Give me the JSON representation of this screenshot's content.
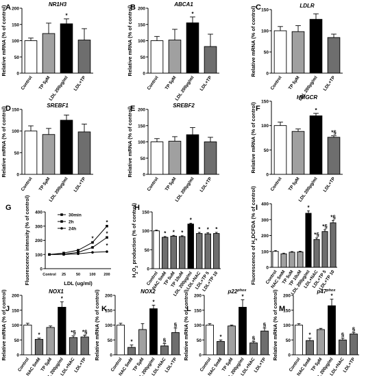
{
  "chart_data": [
    {
      "type": "bar",
      "panel_letter": "A",
      "title": "NR1H3",
      "ylabel": "Relative mRNA (% of control)",
      "ylim": [
        0,
        200
      ],
      "yticks": [
        0,
        50,
        100,
        150,
        200
      ],
      "categories": [
        "Control",
        "TP 5µM",
        "LDL 200µg/ml",
        "LDL+TP"
      ],
      "values": [
        100,
        122,
        152,
        102
      ],
      "errors": [
        8,
        32,
        15,
        35
      ],
      "sig": [
        "",
        "",
        "*",
        ""
      ],
      "colors": [
        "#ffffff",
        "#a0a0a0",
        "#000000",
        "#6e6e6e"
      ]
    },
    {
      "type": "bar",
      "panel_letter": "B",
      "title": "ABCA1",
      "ylabel": "Relative mRNA (% of control)",
      "ylim": [
        0,
        200
      ],
      "yticks": [
        0,
        50,
        100,
        150,
        200
      ],
      "categories": [
        "Control",
        "TP 5µM",
        "LDL 200µg/ml",
        "LDL+TP"
      ],
      "values": [
        100,
        102,
        155,
        82
      ],
      "errors": [
        13,
        33,
        18,
        38
      ],
      "sig": [
        "",
        "",
        "*",
        ""
      ],
      "colors": [
        "#ffffff",
        "#a0a0a0",
        "#000000",
        "#6e6e6e"
      ]
    },
    {
      "type": "bar",
      "panel_letter": "C",
      "title": "LDLR",
      "ylabel": "Relative mRNA (% of control)",
      "ylim": [
        0,
        150
      ],
      "yticks": [
        0,
        50,
        100,
        150
      ],
      "categories": [
        "Control",
        "TP 5µM",
        "LDL 200µg/ml",
        "LDL+TP"
      ],
      "values": [
        100,
        98,
        127,
        84
      ],
      "errors": [
        10,
        14,
        13,
        8
      ],
      "sig": [
        "",
        "",
        "",
        ""
      ],
      "colors": [
        "#ffffff",
        "#a0a0a0",
        "#000000",
        "#6e6e6e"
      ]
    },
    {
      "type": "bar",
      "panel_letter": "D",
      "title": "SREBF1",
      "ylabel": "Relative mRNA (% of control)",
      "ylim": [
        0,
        150
      ],
      "yticks": [
        0,
        50,
        100,
        150
      ],
      "categories": [
        "Control",
        "TP 5µM",
        "LDL 200µg/ml",
        "LDL+TP"
      ],
      "values": [
        100,
        92,
        125,
        98
      ],
      "errors": [
        12,
        14,
        12,
        18
      ],
      "sig": [
        "",
        "",
        "",
        ""
      ],
      "colors": [
        "#ffffff",
        "#a0a0a0",
        "#000000",
        "#6e6e6e"
      ]
    },
    {
      "type": "bar",
      "panel_letter": "E",
      "title": "SREBF2",
      "ylabel": "Relative mRNA (% of control)",
      "ylim": [
        0,
        200
      ],
      "yticks": [
        0,
        50,
        100,
        150,
        200
      ],
      "categories": [
        "Control",
        "TP 5µM",
        "LDL 200µg/ml",
        "LDL+TP"
      ],
      "values": [
        100,
        102,
        122,
        100
      ],
      "errors": [
        10,
        14,
        22,
        14
      ],
      "sig": [
        "",
        "",
        "",
        ""
      ],
      "colors": [
        "#ffffff",
        "#a0a0a0",
        "#000000",
        "#6e6e6e"
      ]
    },
    {
      "type": "bar",
      "panel_letter": "F",
      "title": "HMGCR",
      "ylabel": "Relative mRNA (% of control)",
      "ylim": [
        0,
        150
      ],
      "yticks": [
        0,
        50,
        100,
        150
      ],
      "categories": [
        "Control",
        "TP 5µM",
        "LDL 200µg/ml",
        "LDL+TP"
      ],
      "values": [
        100,
        88,
        120,
        76
      ],
      "errors": [
        7,
        5,
        5,
        3
      ],
      "sig": [
        "",
        "",
        "*",
        "*,§"
      ],
      "colors": [
        "#ffffff",
        "#a0a0a0",
        "#000000",
        "#6e6e6e"
      ]
    },
    {
      "type": "line",
      "panel_letter": "G",
      "title": "",
      "xlabel": "LDL (ug/ml)",
      "ylabel": "Fluorescence intensity (% of control)",
      "ylim": [
        0,
        400
      ],
      "yticks": [
        0,
        100,
        200,
        300,
        400
      ],
      "categories": [
        "Control",
        "25",
        "50",
        "100",
        "200"
      ],
      "series": [
        {
          "name": "30min",
          "values": [
            100,
            102,
            115,
            150,
            220
          ],
          "marker": "square"
        },
        {
          "name": "2h",
          "values": [
            100,
            110,
            130,
            185,
            300
          ],
          "marker": "square"
        },
        {
          "name": "24h",
          "values": [
            100,
            100,
            105,
            115,
            120
          ],
          "marker": "circle"
        }
      ],
      "sig": [
        "",
        "",
        "",
        "",
        ""
      ]
    },
    {
      "type": "bar",
      "panel_letter": "H",
      "title": "",
      "ylabel": "H2O2 production (% of control)",
      "ylim": [
        0,
        150
      ],
      "yticks": [
        0,
        50,
        100,
        150
      ],
      "categories": [
        "Control",
        "NAC 5mM",
        "TP 5uM",
        "TP 10uM",
        "LDL 200µg/ml",
        "LDL+NAC",
        "LDL+TP 5",
        "LDL+TP 10"
      ],
      "values": [
        100,
        83,
        86,
        85,
        118,
        93,
        92,
        93
      ],
      "errors": [
        2,
        2,
        2,
        2,
        2,
        3,
        3,
        3
      ],
      "sig": [
        "",
        "*",
        "*",
        "*",
        "*",
        "*",
        "*",
        "*"
      ],
      "colors": [
        "#ffffff",
        "#6e6e6e",
        "#6e6e6e",
        "#6e6e6e",
        "#000000",
        "#6e6e6e",
        "#6e6e6e",
        "#6e6e6e"
      ]
    },
    {
      "type": "bar",
      "panel_letter": "I",
      "title": "",
      "ylabel": "Fluorescence of H2DCFDA (% of control)",
      "ylim": [
        0,
        400
      ],
      "yticks": [
        0,
        100,
        200,
        300,
        400
      ],
      "categories": [
        "Control",
        "NAC 5mM",
        "TP 5uM",
        "TP 10uM",
        "LDL 200µg/ml",
        "LDL+NAC",
        "LDL+TP 5",
        "LDL+TP 10"
      ],
      "values": [
        100,
        85,
        95,
        97,
        340,
        175,
        225,
        280
      ],
      "errors": [
        5,
        4,
        4,
        4,
        15,
        10,
        12,
        15
      ],
      "sig": [
        "",
        "",
        "",
        "",
        "*",
        "*,§",
        "*,§",
        "*,§"
      ],
      "colors": [
        "#ffffff",
        "#a0a0a0",
        "#a0a0a0",
        "#a0a0a0",
        "#000000",
        "#6e6e6e",
        "#6e6e6e",
        "#6e6e6e"
      ]
    },
    {
      "type": "bar",
      "panel_letter": "J",
      "title": "NOX1",
      "ylabel": "Relative mRNA (% of control)",
      "ylim": [
        0,
        200
      ],
      "yticks": [
        0,
        50,
        100,
        150,
        200
      ],
      "categories": [
        "Control",
        "NAC 5mM",
        "TP 5µM",
        "LDL 200µg/ml",
        "LDL+NAC",
        "LDL+TP"
      ],
      "values": [
        100,
        52,
        92,
        160,
        58,
        60
      ],
      "errors": [
        6,
        4,
        5,
        18,
        6,
        6
      ],
      "sig": [
        "",
        "*",
        "",
        "*",
        "*,§",
        "*,§"
      ],
      "colors": [
        "#ffffff",
        "#6e6e6e",
        "#a0a0a0",
        "#000000",
        "#6e6e6e",
        "#6e6e6e"
      ]
    },
    {
      "type": "bar",
      "panel_letter": "K",
      "title": "NOX2",
      "ylabel": "Relative mRNA (% of control)",
      "ylim": [
        0,
        200
      ],
      "yticks": [
        0,
        50,
        100,
        150,
        200
      ],
      "categories": [
        "Control",
        "NAC 5mM",
        "TP 5µM",
        "LDL 200µg/ml",
        "LDL+NAC",
        "LDL+TP"
      ],
      "values": [
        100,
        25,
        85,
        155,
        30,
        75
      ],
      "errors": [
        6,
        8,
        20,
        12,
        8,
        15
      ],
      "sig": [
        "",
        "*",
        "",
        "*",
        "§",
        "§"
      ],
      "colors": [
        "#ffffff",
        "#6e6e6e",
        "#a0a0a0",
        "#000000",
        "#6e6e6e",
        "#6e6e6e"
      ]
    },
    {
      "type": "bar",
      "panel_letter": "L",
      "title": "p22phox",
      "ylabel": "Relative mRNA (% of control)",
      "ylim": [
        0,
        200
      ],
      "yticks": [
        0,
        50,
        100,
        150,
        200
      ],
      "categories": [
        "Control",
        "NAC 5mM",
        "TP 5µM",
        "LDL 200µg/ml",
        "LDL+NAC",
        "LDL+TP"
      ],
      "values": [
        100,
        45,
        97,
        160,
        40,
        80
      ],
      "errors": [
        5,
        5,
        3,
        25,
        5,
        10
      ],
      "sig": [
        "",
        "*",
        "",
        "*",
        "§",
        "§"
      ],
      "colors": [
        "#ffffff",
        "#6e6e6e",
        "#a0a0a0",
        "#000000",
        "#6e6e6e",
        "#6e6e6e"
      ]
    },
    {
      "type": "bar",
      "panel_letter": "M",
      "title": "p47phox",
      "ylabel": "Relative mRNA (% of control)",
      "ylim": [
        0,
        200
      ],
      "yticks": [
        0,
        50,
        100,
        150,
        200
      ],
      "categories": [
        "Control",
        "NAC 5mM",
        "TP 5µM",
        "LDL 200µg/ml",
        "LDL+NAC",
        "LDL+TP"
      ],
      "values": [
        100,
        48,
        85,
        165,
        50,
        70
      ],
      "errors": [
        5,
        8,
        4,
        22,
        6,
        5
      ],
      "sig": [
        "",
        "*",
        "",
        "*",
        "§",
        "§"
      ],
      "colors": [
        "#ffffff",
        "#6e6e6e",
        "#a0a0a0",
        "#000000",
        "#6e6e6e",
        "#6e6e6e"
      ]
    }
  ]
}
